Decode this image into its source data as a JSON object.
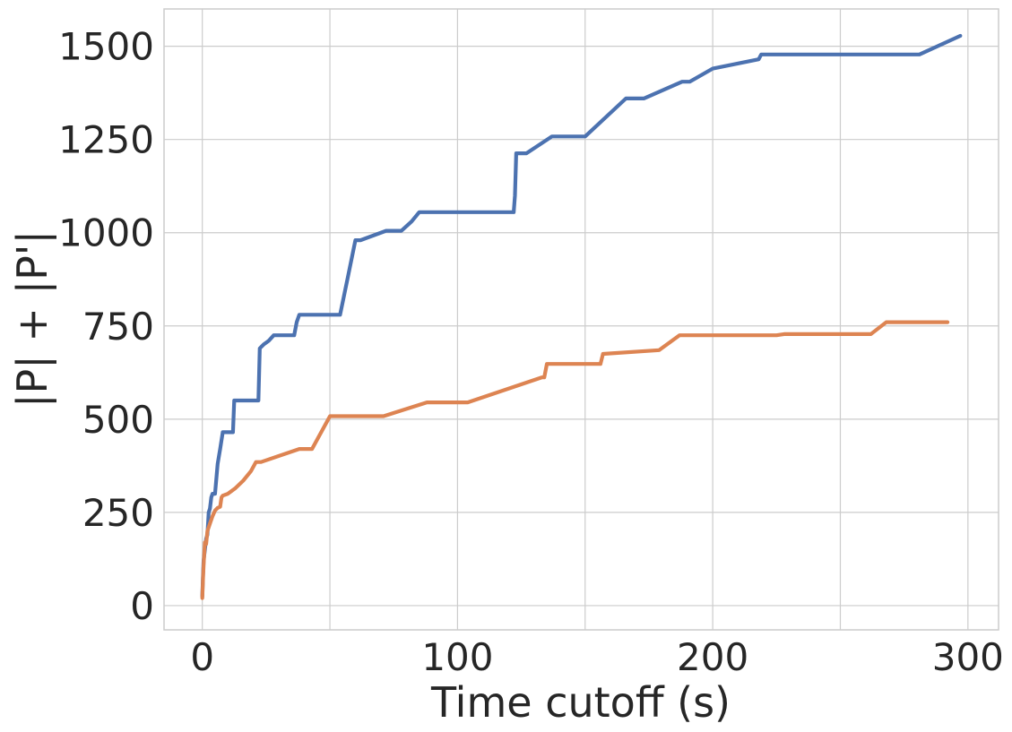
{
  "chart_data": {
    "type": "line",
    "xlabel": "Time cutoff (s)",
    "ylabel": "|P| + |P'|",
    "xlim": [
      -15,
      312
    ],
    "ylim": [
      -65,
      1600
    ],
    "xticks": [
      0,
      100,
      200,
      300
    ],
    "yticks": [
      0,
      250,
      500,
      750,
      1000,
      1250,
      1500
    ],
    "grid": true,
    "series": [
      {
        "color": "#4c72b0",
        "x": [
          0,
          0.2,
          0.5,
          1,
          1.5,
          2,
          2.5,
          3,
          3.5,
          4,
          5,
          6,
          7,
          8,
          10,
          12,
          12.5,
          15,
          20,
          22,
          22.5,
          24,
          26,
          28,
          30,
          36,
          37,
          38,
          40,
          42,
          50,
          54,
          57,
          60,
          62,
          64,
          72,
          78,
          82,
          85,
          100,
          110,
          122,
          122.5,
          123,
          127,
          137,
          150,
          166,
          173,
          188,
          191,
          200,
          218,
          219,
          221,
          240,
          260,
          281,
          297
        ],
        "y": [
          25,
          70,
          120,
          150,
          180,
          190,
          250,
          260,
          290,
          300,
          300,
          380,
          420,
          465,
          465,
          465,
          550,
          550,
          550,
          550,
          690,
          700,
          710,
          725,
          725,
          725,
          760,
          780,
          780,
          780,
          780,
          780,
          880,
          980,
          980,
          985,
          1005,
          1005,
          1030,
          1055,
          1055,
          1055,
          1055,
          1100,
          1213,
          1213,
          1258,
          1258,
          1360,
          1360,
          1405,
          1405,
          1440,
          1465,
          1478,
          1478,
          1478,
          1478,
          1478,
          1528
        ]
      },
      {
        "color": "#dd8452",
        "x": [
          0,
          0.3,
          0.6,
          1,
          1.5,
          2,
          3,
          4,
          5,
          6,
          7,
          7.5,
          8,
          10,
          13,
          16,
          19,
          21,
          23,
          38,
          43,
          50,
          60,
          71,
          88,
          104,
          133,
          134,
          135,
          150,
          156,
          157,
          179,
          187,
          225,
          228,
          262,
          268,
          292
        ],
        "y": [
          20,
          80,
          120,
          170,
          165,
          200,
          220,
          240,
          255,
          262,
          265,
          290,
          295,
          300,
          315,
          335,
          360,
          385,
          385,
          420,
          420,
          508,
          508,
          508,
          545,
          545,
          612,
          612,
          648,
          648,
          648,
          675,
          685,
          725,
          725,
          728,
          728,
          760,
          760
        ]
      }
    ]
  }
}
